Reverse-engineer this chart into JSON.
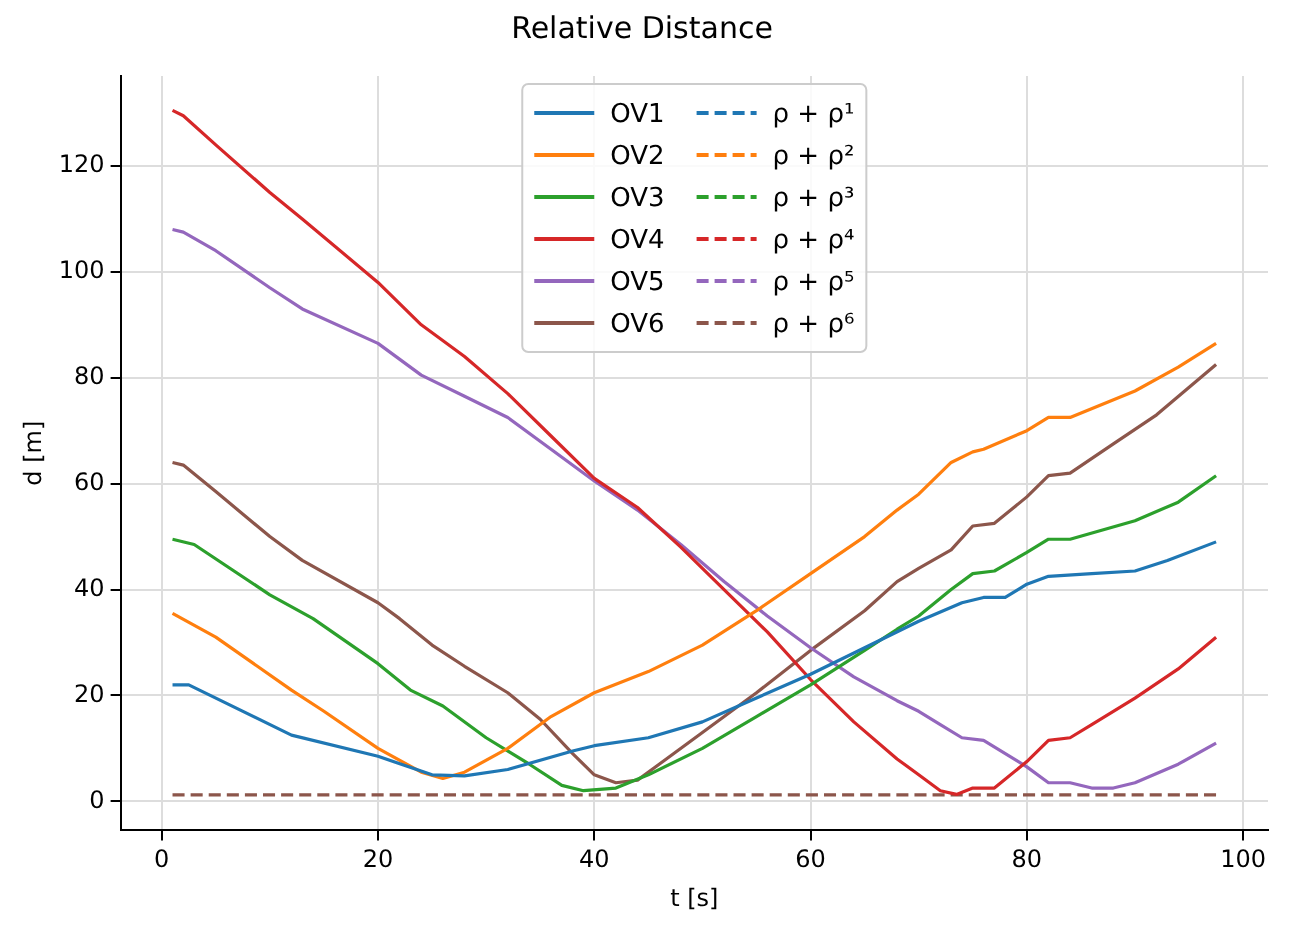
{
  "chart_data": {
    "type": "line",
    "title": "Relative Distance",
    "xlabel": "t [s]",
    "ylabel": "d [m]",
    "xlim": [
      -3.8,
      102.3
    ],
    "xticks": [
      0,
      20,
      40,
      60,
      80,
      100
    ],
    "ylim": [
      -5.5,
      137
    ],
    "yticks": [
      0,
      20,
      40,
      60,
      80,
      100,
      120
    ],
    "grid": true,
    "legend": "top",
    "marker": "none",
    "series": [
      {
        "name": "OV1",
        "color": "#1f77b4",
        "line_style": "solid",
        "x": [
          1,
          2.5,
          12,
          20,
          25,
          28,
          32,
          38,
          40,
          45,
          50,
          55,
          60,
          65,
          70,
          74,
          76,
          78,
          80,
          82,
          86,
          90,
          93,
          97.5
        ],
        "values": [
          22,
          22,
          12.5,
          8.5,
          5,
          4.8,
          6,
          9.5,
          10.5,
          12,
          15,
          19.5,
          24,
          29,
          34,
          37.5,
          38.5,
          38.5,
          41,
          42.5,
          43,
          43.5,
          45.5,
          49
        ]
      },
      {
        "name": "OV2",
        "color": "#ff7f0e",
        "line_style": "solid",
        "x": [
          1,
          5,
          12,
          15,
          20,
          24,
          26,
          28,
          32,
          36,
          40,
          45,
          50,
          55,
          60,
          65,
          68,
          70,
          73,
          75,
          76,
          80,
          82,
          84,
          90,
          94,
          97.5
        ],
        "values": [
          35.5,
          31,
          21,
          17,
          10,
          5.5,
          4.3,
          5.5,
          10,
          16,
          20.5,
          24.5,
          29.5,
          36,
          43,
          50,
          55,
          58,
          64,
          66,
          66.5,
          70,
          72.5,
          72.5,
          77.5,
          82,
          86.5
        ]
      },
      {
        "name": "OV3",
        "color": "#2ca02c",
        "line_style": "solid",
        "x": [
          1,
          3,
          10,
          14,
          20,
          23,
          26,
          30,
          34,
          37,
          39,
          42,
          45,
          50,
          55,
          60,
          65,
          68,
          70,
          73,
          75,
          77,
          80,
          82,
          84,
          90,
          94,
          97.5
        ],
        "values": [
          49.5,
          48.5,
          39,
          34.5,
          26,
          21,
          18,
          12,
          7,
          3,
          2,
          2.5,
          5,
          10,
          16,
          22,
          28.5,
          32.5,
          35,
          40,
          43,
          43.5,
          47,
          49.5,
          49.5,
          53,
          56.5,
          61.5
        ]
      },
      {
        "name": "OV4",
        "color": "#d62728",
        "line_style": "solid",
        "x": [
          1,
          2,
          5,
          10,
          13,
          20,
          24,
          28,
          32,
          36,
          40,
          44,
          48,
          52,
          56,
          60,
          64,
          68,
          70,
          72,
          73.5,
          75,
          77,
          80,
          82,
          84,
          86,
          90,
          94,
          97.5
        ],
        "values": [
          130.5,
          129.5,
          124,
          115,
          110,
          98,
          90,
          84,
          77,
          69,
          61,
          55.5,
          48,
          40,
          32,
          23,
          15,
          8,
          5,
          2,
          1.3,
          2.5,
          2.5,
          7.5,
          11.5,
          12,
          14.5,
          19.5,
          25,
          31
        ]
      },
      {
        "name": "OV5",
        "color": "#9467bd",
        "line_style": "solid",
        "x": [
          1,
          2,
          5,
          10,
          13,
          20,
          24,
          28,
          32,
          36,
          40,
          44,
          48,
          52,
          56,
          60,
          64,
          68,
          70,
          72,
          74,
          76,
          80,
          82,
          84,
          86,
          88,
          90,
          94,
          97.5
        ],
        "values": [
          108,
          107.5,
          104,
          97,
          93,
          86.5,
          80.5,
          76.5,
          72.5,
          66.5,
          60.5,
          55,
          48.5,
          41.5,
          35,
          29,
          23.5,
          19,
          17,
          14.5,
          12,
          11.5,
          6.5,
          3.5,
          3.5,
          2.5,
          2.5,
          3.5,
          7,
          11
        ]
      },
      {
        "name": "OV6",
        "color": "#8c564b",
        "line_style": "solid",
        "x": [
          1,
          2,
          5,
          10,
          13,
          20,
          22,
          25,
          28,
          32,
          35,
          38,
          40,
          42,
          44,
          46,
          50,
          55,
          60,
          65,
          68,
          70,
          73,
          75,
          77,
          80,
          82,
          84,
          88,
          92,
          97.5
        ],
        "values": [
          64,
          63.5,
          58.5,
          50,
          45.5,
          37.5,
          34.5,
          29.5,
          25.5,
          20.5,
          15.5,
          9,
          5,
          3.5,
          4,
          7,
          13,
          20.5,
          28.5,
          36,
          41.5,
          44,
          47.5,
          52,
          52.5,
          57.5,
          61.5,
          62,
          67.5,
          73,
          82.5
        ]
      },
      {
        "name": "ρ + ρ¹",
        "color": "#1f77b4",
        "line_style": "dashed",
        "values": [
          null,
          null
        ]
      },
      {
        "name": "ρ + ρ²",
        "color": "#ff7f0e",
        "line_style": "dashed",
        "values": [
          null,
          null
        ]
      },
      {
        "name": "ρ + ρ³",
        "color": "#2ca02c",
        "line_style": "dashed",
        "values": [
          null,
          null
        ]
      },
      {
        "name": "ρ + ρ⁴",
        "color": "#d62728",
        "line_style": "dashed",
        "values": [
          null,
          null
        ]
      },
      {
        "name": "ρ + ρ⁵",
        "color": "#9467bd",
        "line_style": "dashed",
        "values": [
          null,
          null
        ]
      },
      {
        "name": "ρ + ρ⁶",
        "color": "#8c564b",
        "line_style": "dashed",
        "x": [
          1,
          97.5
        ],
        "values": [
          1.2,
          1.2
        ]
      }
    ]
  }
}
